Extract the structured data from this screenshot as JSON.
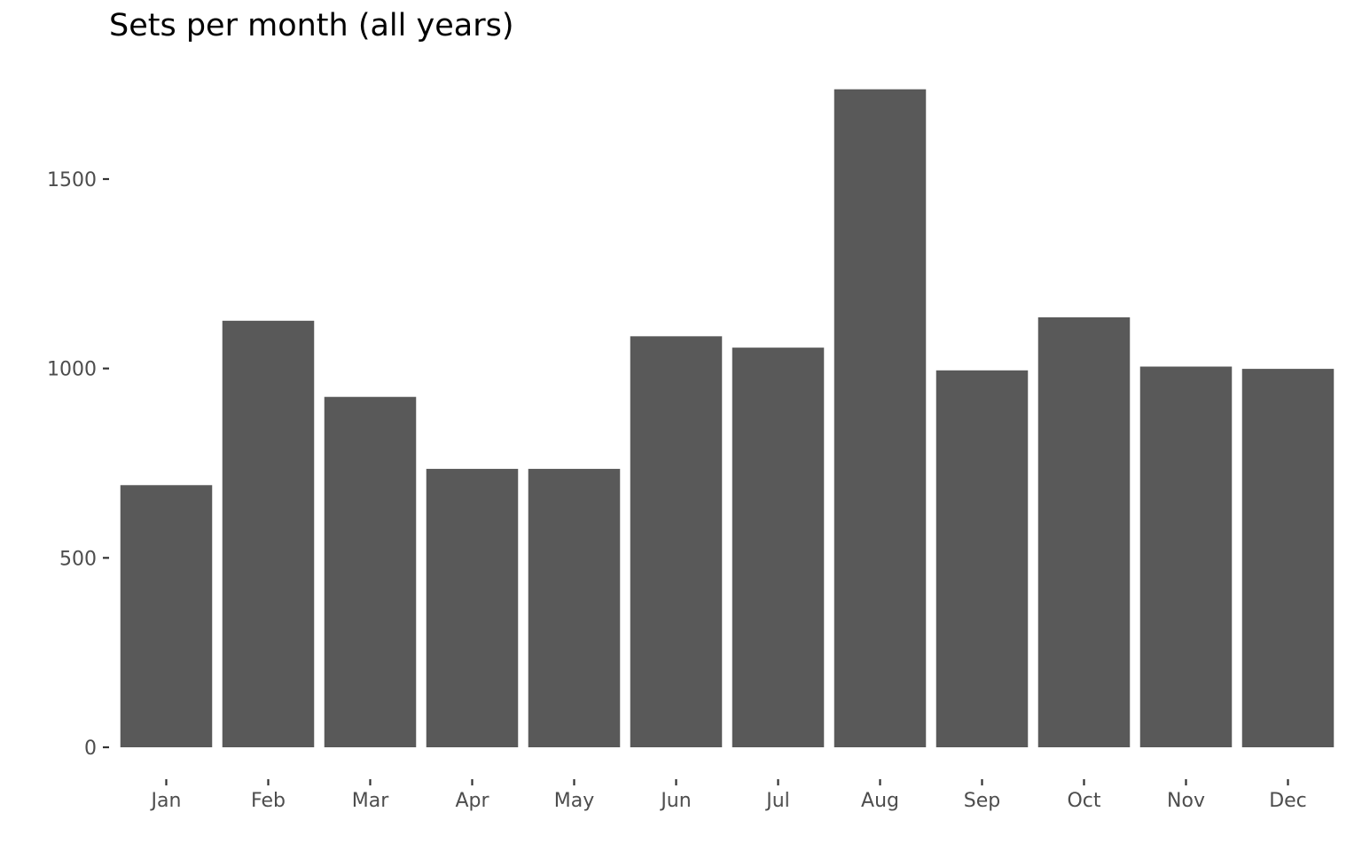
{
  "chart_data": {
    "type": "bar",
    "title": "Sets per month (all years)",
    "xlabel": "",
    "ylabel": "",
    "categories": [
      "Jan",
      "Feb",
      "Mar",
      "Apr",
      "May",
      "Jun",
      "Jul",
      "Aug",
      "Sep",
      "Oct",
      "Nov",
      "Dec"
    ],
    "values": [
      692,
      1126,
      925,
      735,
      735,
      1085,
      1055,
      1737,
      995,
      1135,
      1005,
      999
    ],
    "ylim": [
      0,
      1800
    ],
    "yticks": [
      0,
      500,
      1000,
      1500
    ],
    "grid": false,
    "legend": "none",
    "bar_color": "#595959"
  }
}
